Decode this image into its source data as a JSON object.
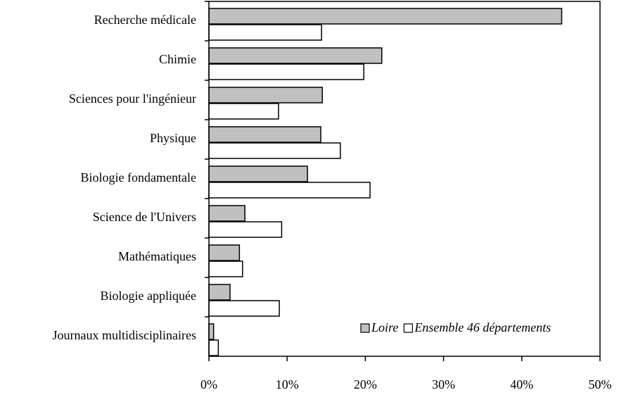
{
  "chart_data": {
    "type": "bar",
    "orientation": "horizontal",
    "categories": [
      "Recherche médicale",
      "Chimie",
      "Sciences pour l'ingénieur",
      "Physique",
      "Biologie fondamentale",
      "Science de l'Univers",
      "Mathématiques",
      "Biologie appliquée",
      "Journaux multidisciplinaires"
    ],
    "series": [
      {
        "name": "Loire",
        "color": "#c0c0c0",
        "values": [
          45.1,
          22.1,
          14.5,
          14.3,
          12.6,
          4.6,
          3.9,
          2.7,
          0.6
        ]
      },
      {
        "name": "Ensemble 46 départements",
        "color": "#ffffff",
        "values": [
          14.4,
          19.8,
          8.9,
          16.8,
          20.6,
          9.3,
          4.3,
          9.0,
          1.2
        ]
      }
    ],
    "xlim": [
      0,
      50
    ],
    "xticks": [
      {
        "value": 0,
        "label": "0%"
      },
      {
        "value": 10,
        "label": "10%"
      },
      {
        "value": 20,
        "label": "20%"
      },
      {
        "value": 30,
        "label": "30%"
      },
      {
        "value": 40,
        "label": "40%"
      },
      {
        "value": 50,
        "label": "50%"
      }
    ],
    "legend": "lower right"
  }
}
